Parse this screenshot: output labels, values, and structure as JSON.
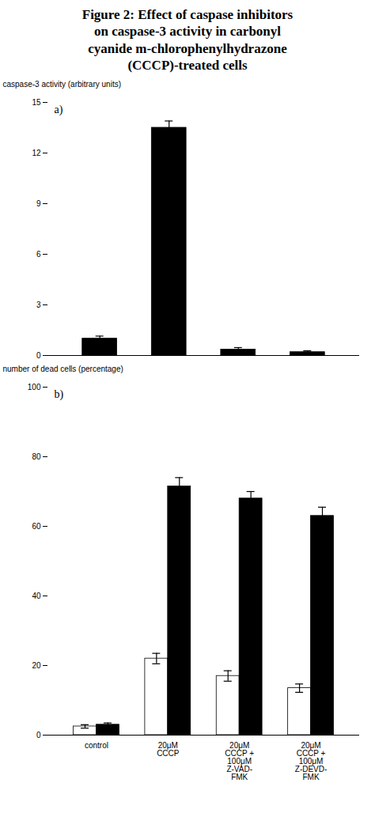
{
  "chart_data": [
    {
      "type": "bar",
      "title": [
        "Figure 2:  Effect of caspase inhibitors",
        "on caspase-3 activity in carbonyl",
        "cyanide m-chlorophenylhydrazone",
        "(CCCP)-treated cells"
      ],
      "annotations": [
        "a)"
      ],
      "ylabel": "caspase-3 activity (arbitrary units)",
      "categories": [
        "control",
        "20μM\nCCCP",
        "20μM\nCCCP +\n100μM\nZ-VAD-\nFMK",
        "20μM\nCCCP +\n100μM\nZ-DEVD-\nFMK"
      ],
      "values": [
        1.0,
        13.5,
        0.35,
        0.2
      ],
      "errors": [
        0.15,
        0.4,
        0.12,
        0.08
      ],
      "color": "#000000",
      "ylim": [
        0,
        15
      ],
      "yticks": [
        0,
        3,
        6,
        9,
        12,
        15
      ],
      "tick_labels": "y"
    },
    {
      "type": "bar",
      "annotations": [
        "b)"
      ],
      "ylabel": "number of dead cells (percentage)",
      "categories": [
        "control",
        "20μM\nCCCP",
        "20μM\nCCCP +\n100μM\nZ-VAD-\nFMK",
        "20μM\nCCCP +\n100μM\nZ-DEVD-\nFMK"
      ],
      "series": [
        {
          "color": "#ffffff",
          "values": [
            2.5,
            22.0,
            17.0,
            13.5
          ],
          "errors": [
            0.5,
            1.5,
            1.5,
            1.2
          ]
        },
        {
          "color": "#000000",
          "values": [
            3.0,
            71.5,
            68.0,
            63.0
          ],
          "errors": [
            0.5,
            2.5,
            2.0,
            2.5
          ]
        }
      ],
      "ylim": [
        0,
        100
      ],
      "yticks": [
        0,
        20,
        40,
        60,
        80,
        100
      ]
    }
  ]
}
